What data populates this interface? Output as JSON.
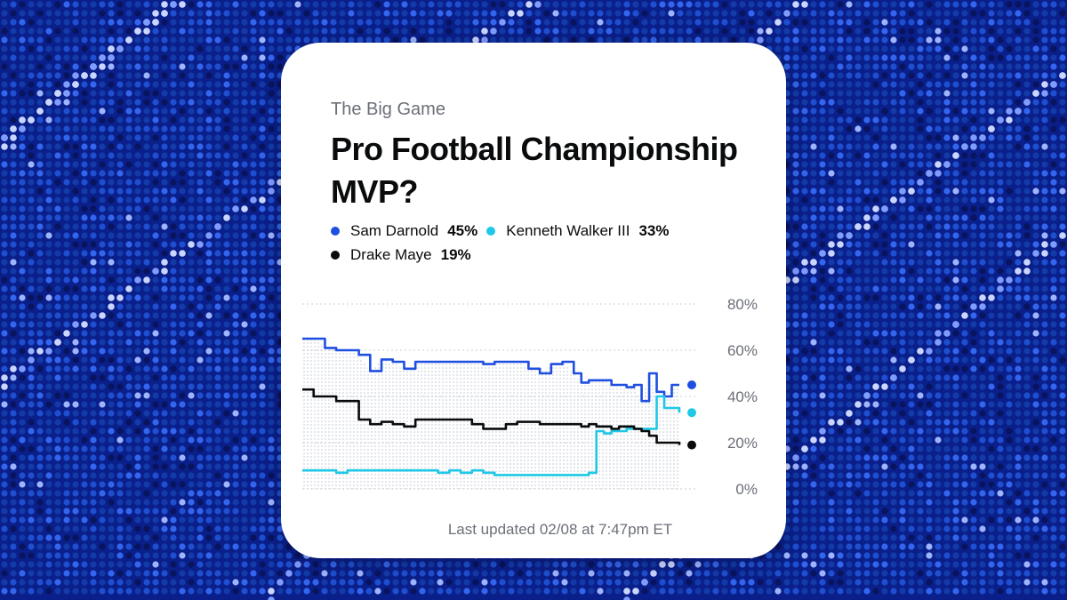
{
  "card": {
    "subtitle": "The Big Game",
    "title": "Pro Football Championship MVP?",
    "footer": "Last updated 02/08 at 7:47pm ET"
  },
  "colors": {
    "background": "#0b1f8a",
    "sam": "#1f4fe0",
    "kenneth": "#1ec8e6",
    "drake": "#0a0b0d"
  },
  "legend": [
    {
      "name": "Sam Darnold",
      "pct": "45%",
      "color": "#1f4fe0"
    },
    {
      "name": "Kenneth Walker III",
      "pct": "33%",
      "color": "#1ec8e6"
    },
    {
      "name": "Drake Maye",
      "pct": "19%",
      "color": "#0a0b0d"
    }
  ],
  "chart_data": {
    "type": "line",
    "title": "Pro Football Championship MVP?",
    "xlabel": "",
    "ylabel": "",
    "ylim": [
      0,
      80
    ],
    "yticks": [
      "80%",
      "60%",
      "40%",
      "20%",
      "0%"
    ],
    "grid": true,
    "x": [
      0,
      3,
      6,
      9,
      12,
      15,
      18,
      21,
      24,
      27,
      30,
      33,
      36,
      39,
      42,
      45,
      48,
      51,
      54,
      57,
      60,
      63,
      66,
      69,
      72,
      74,
      76,
      78,
      80,
      82,
      84,
      86,
      88,
      90,
      92,
      94,
      96,
      98,
      100
    ],
    "series": [
      {
        "name": "Sam Darnold",
        "color": "#1f4fe0",
        "values": [
          65,
          65,
          61,
          60,
          60,
          58,
          51,
          56,
          55,
          52,
          55,
          55,
          55,
          55,
          55,
          55,
          54,
          55,
          55,
          55,
          52,
          50,
          54,
          55,
          50,
          46,
          47,
          47,
          47,
          45,
          45,
          44,
          45,
          38,
          50,
          42,
          40,
          45,
          45
        ]
      },
      {
        "name": "Kenneth Walker III",
        "color": "#1ec8e6",
        "values": [
          8,
          8,
          8,
          7,
          8,
          8,
          8,
          8,
          8,
          8,
          8,
          8,
          7,
          8,
          7,
          8,
          7,
          6,
          6,
          6,
          6,
          6,
          6,
          6,
          6,
          6,
          7,
          25,
          24,
          25,
          25,
          26,
          26,
          26,
          26,
          40,
          35,
          35,
          33
        ]
      },
      {
        "name": "Drake Maye",
        "color": "#0a0b0d",
        "values": [
          43,
          40,
          40,
          38,
          38,
          30,
          28,
          29,
          28,
          27,
          30,
          30,
          30,
          30,
          30,
          28,
          26,
          26,
          28,
          29,
          29,
          28,
          28,
          28,
          28,
          27,
          28,
          27,
          27,
          26,
          27,
          27,
          26,
          25,
          23,
          20,
          20,
          20,
          19
        ]
      }
    ]
  }
}
